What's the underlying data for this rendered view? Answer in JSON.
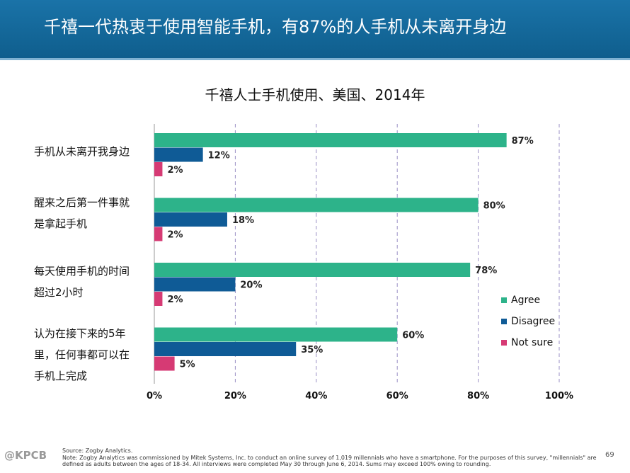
{
  "header": {
    "title": "千禧一代热衷于使用智能手机，有87%的人手机从未离开身边"
  },
  "colors": {
    "agree": "#2db38a",
    "disagree": "#0f5b96",
    "not_sure": "#d63a74",
    "grid": "#9a8fc4"
  },
  "chart_data": {
    "type": "bar",
    "orientation": "horizontal",
    "title": "千禧人士手机使用、美国、2014年",
    "categories": [
      "手机从未离开我身边",
      "醒来之后第一件事就是拿起手机",
      "每天使用手机的时间超过2小时",
      "认为在接下来的5年里，任何事都可以在手机上完成"
    ],
    "category_lines": [
      [
        "手机从未离开我身边"
      ],
      [
        "醒来之后第一件事就",
        "是拿起手机"
      ],
      [
        "每天使用手机的时间",
        "超过2小时"
      ],
      [
        "认为在接下来的5年",
        "里，任何事都可以在",
        "手机上完成"
      ]
    ],
    "series": [
      {
        "name": "Agree",
        "values": [
          87,
          80,
          78,
          60
        ]
      },
      {
        "name": "Disagree",
        "values": [
          12,
          18,
          20,
          35
        ]
      },
      {
        "name": "Not sure",
        "values": [
          2,
          2,
          2,
          5
        ]
      }
    ],
    "data_labels": [
      [
        "87%",
        "80%",
        "78%",
        "60%"
      ],
      [
        "12%",
        "18%",
        "20%",
        "35%"
      ],
      [
        "2%",
        "2%",
        "2%",
        "5%"
      ]
    ],
    "xlim": [
      0,
      100
    ],
    "xticks": [
      "0%",
      "20%",
      "40%",
      "60%",
      "80%",
      "100%"
    ],
    "legend": [
      "Agree",
      "Disagree",
      "Not sure"
    ],
    "legend_position": "right"
  },
  "footer": {
    "source": "Source: Zogby Analytics.",
    "note": "Note: Zogby Analytics was commissioned by Mitek Systems, Inc. to conduct an online survey of 1,019 millennials who have a smartphone. For the purposes of this survey, \"millennials\" are defined as adults between the ages of 18-34. All interviews were completed May 30 through June 6, 2014. Sums may exceed 100% owing to rounding.",
    "logo": "@KPCB",
    "page": "69"
  }
}
